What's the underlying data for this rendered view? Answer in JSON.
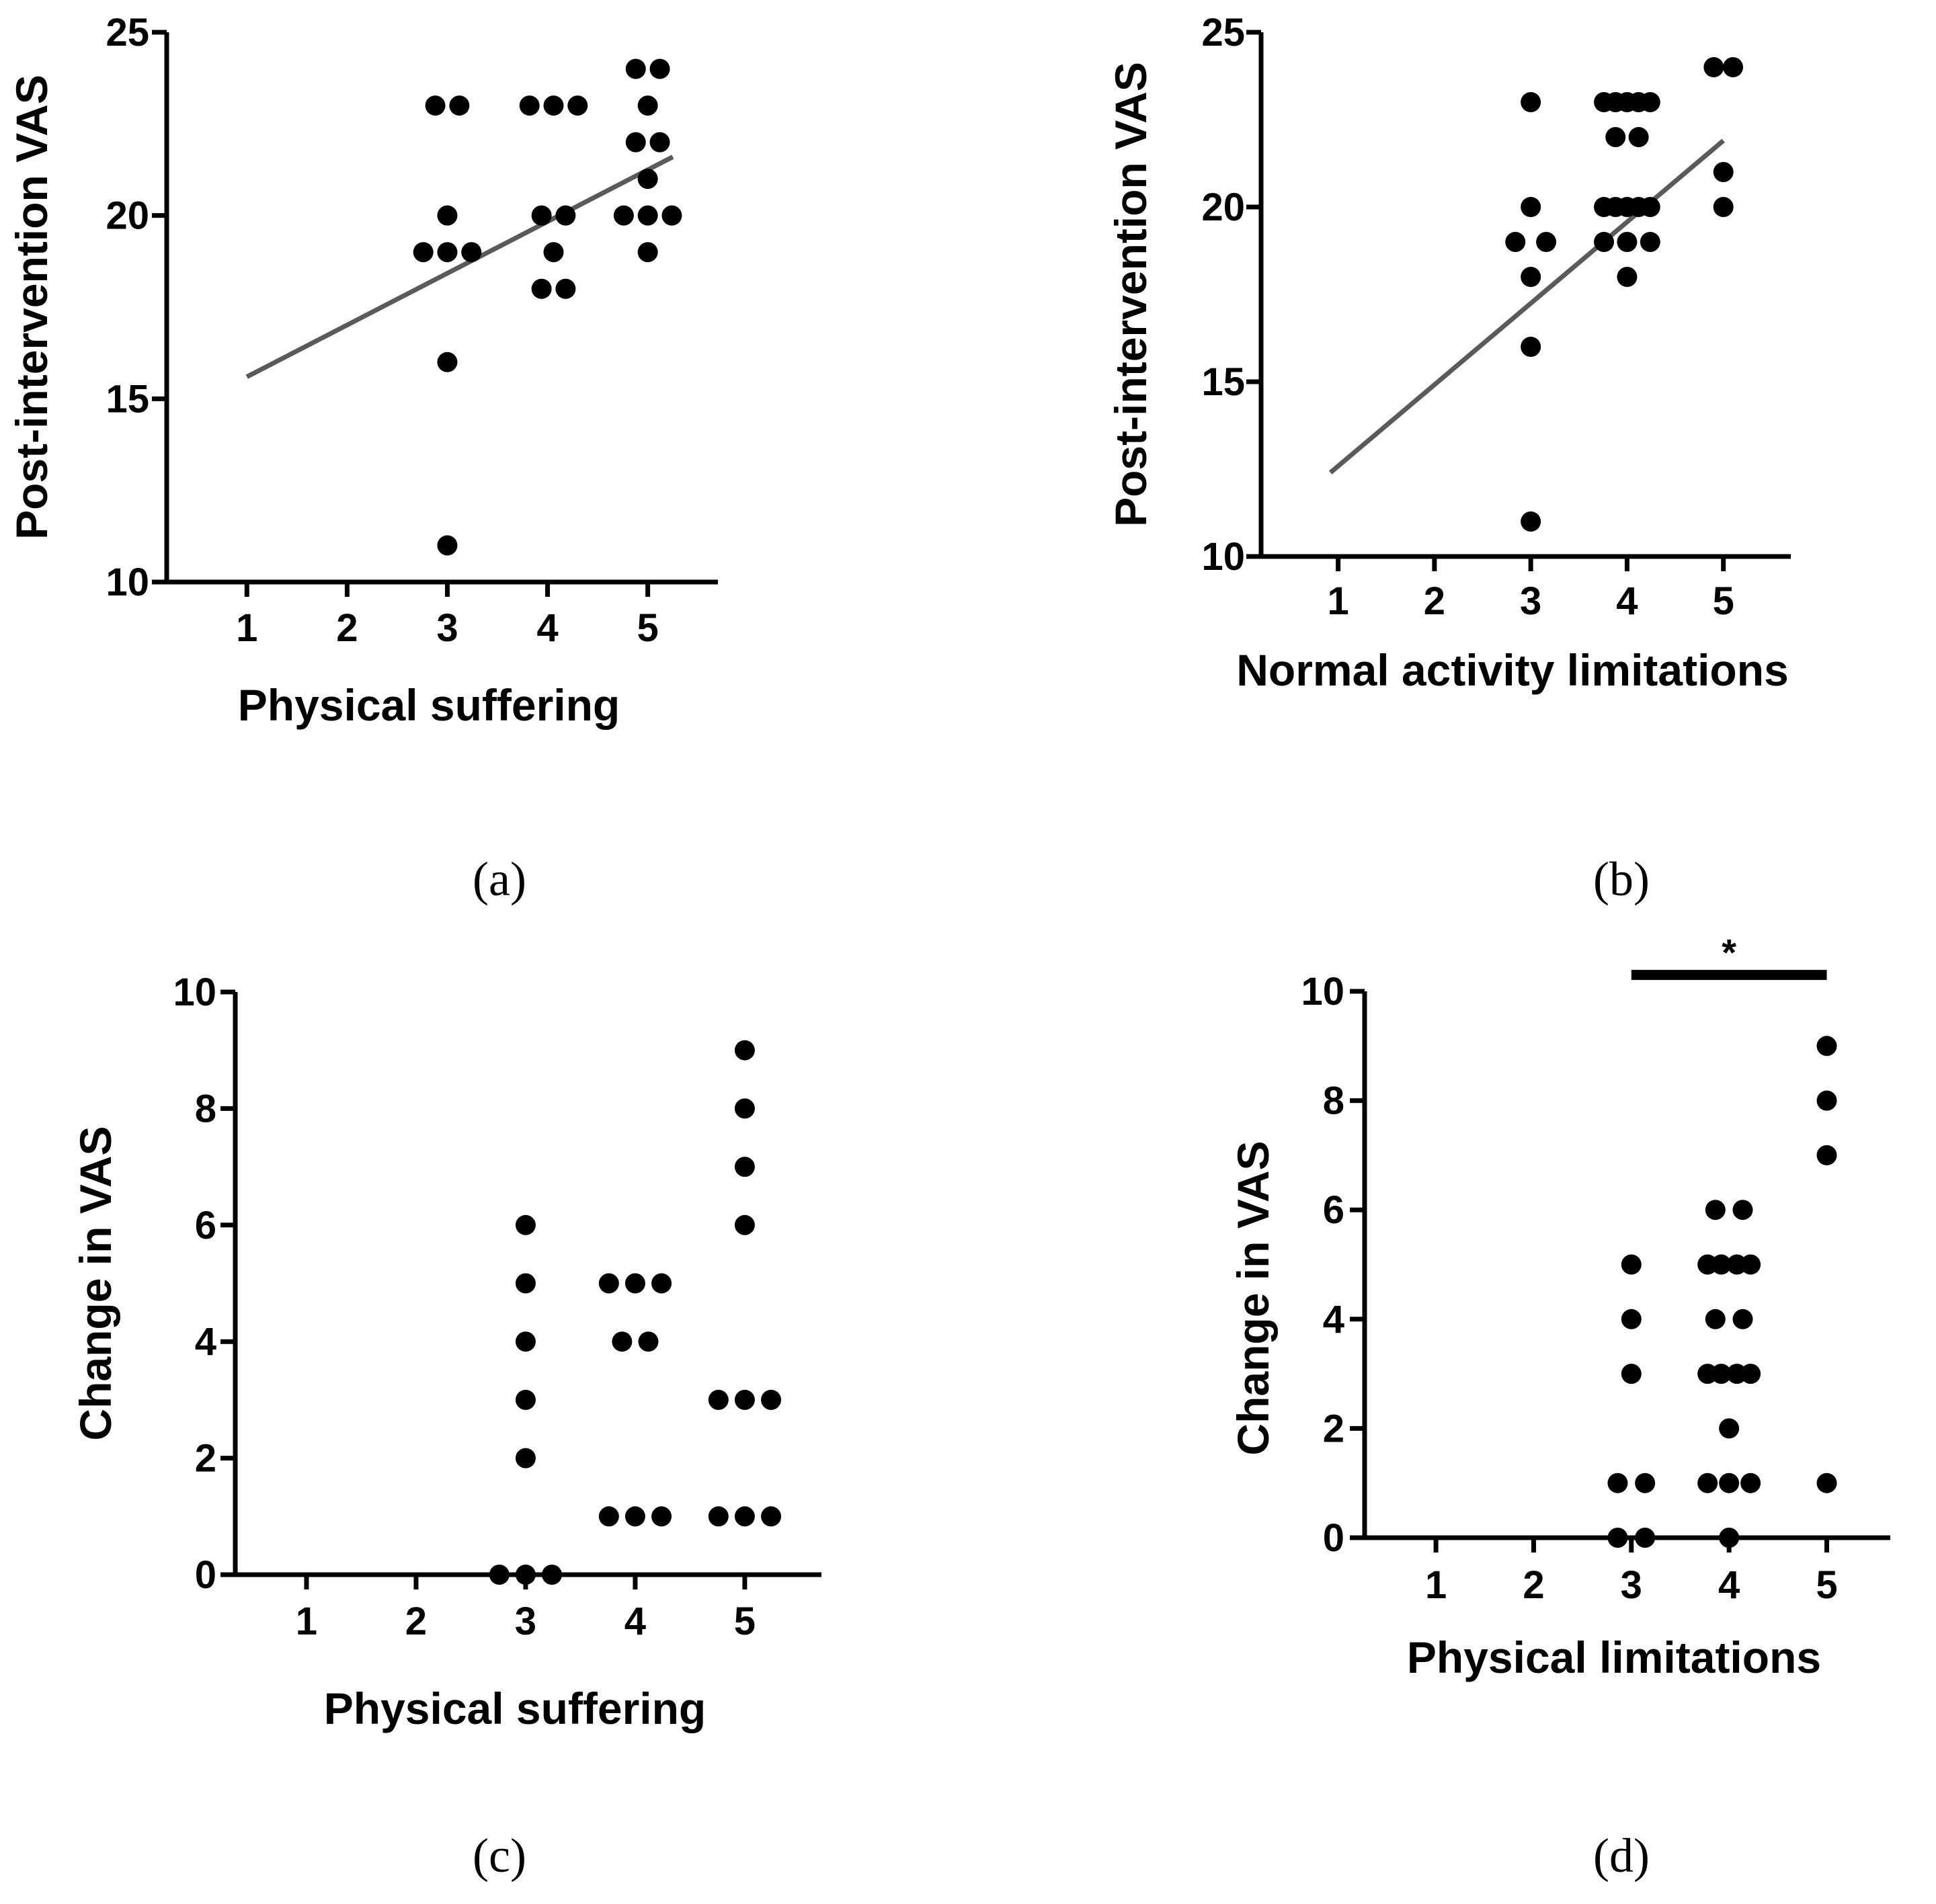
{
  "figure": {
    "panels": [
      "(a)",
      "(b)",
      "(c)",
      "(d)"
    ]
  },
  "chart_data": [
    {
      "id": "a",
      "type": "scatter",
      "panel_label": "(a)",
      "xlabel": "Physical suffering",
      "ylabel": "Post-intervention VAS",
      "xlim": [
        0.2,
        5.7
      ],
      "ylim": [
        10,
        25
      ],
      "xticks": [
        "1",
        "2",
        "3",
        "4",
        "5"
      ],
      "yticks": [
        "10",
        "15",
        "20",
        "25"
      ],
      "points": [
        {
          "x": 2.88,
          "y": 23
        },
        {
          "x": 3.12,
          "y": 23
        },
        {
          "x": 3.0,
          "y": 20
        },
        {
          "x": 2.76,
          "y": 19
        },
        {
          "x": 3.0,
          "y": 19
        },
        {
          "x": 3.24,
          "y": 19
        },
        {
          "x": 3.0,
          "y": 16
        },
        {
          "x": 3.0,
          "y": 11
        },
        {
          "x": 3.82,
          "y": 23
        },
        {
          "x": 4.06,
          "y": 23
        },
        {
          "x": 4.3,
          "y": 23
        },
        {
          "x": 3.94,
          "y": 20
        },
        {
          "x": 4.18,
          "y": 20
        },
        {
          "x": 4.06,
          "y": 19
        },
        {
          "x": 3.94,
          "y": 18
        },
        {
          "x": 4.18,
          "y": 18
        },
        {
          "x": 4.88,
          "y": 24
        },
        {
          "x": 5.12,
          "y": 24
        },
        {
          "x": 5.0,
          "y": 23
        },
        {
          "x": 4.88,
          "y": 22
        },
        {
          "x": 5.12,
          "y": 22
        },
        {
          "x": 5.0,
          "y": 21
        },
        {
          "x": 4.76,
          "y": 20
        },
        {
          "x": 5.0,
          "y": 20
        },
        {
          "x": 5.24,
          "y": 20
        },
        {
          "x": 5.0,
          "y": 19
        }
      ],
      "fit_line": {
        "x": [
          1.0,
          5.25
        ],
        "y": [
          15.6,
          21.6
        ]
      }
    },
    {
      "id": "b",
      "type": "scatter",
      "panel_label": "(b)",
      "xlabel": "Normal activity limitations",
      "ylabel": "Post-intervention VAS",
      "xlim": [
        0.2,
        5.7
      ],
      "ylim": [
        10,
        25
      ],
      "xticks": [
        "1",
        "2",
        "3",
        "4",
        "5"
      ],
      "yticks": [
        "10",
        "15",
        "20",
        "25"
      ],
      "points": [
        {
          "x": 3.0,
          "y": 23
        },
        {
          "x": 3.0,
          "y": 20
        },
        {
          "x": 2.84,
          "y": 19
        },
        {
          "x": 3.16,
          "y": 19
        },
        {
          "x": 3.0,
          "y": 18
        },
        {
          "x": 3.0,
          "y": 16
        },
        {
          "x": 3.0,
          "y": 11
        },
        {
          "x": 3.76,
          "y": 23
        },
        {
          "x": 3.88,
          "y": 23
        },
        {
          "x": 4.0,
          "y": 23
        },
        {
          "x": 4.12,
          "y": 23
        },
        {
          "x": 4.24,
          "y": 23
        },
        {
          "x": 3.88,
          "y": 22
        },
        {
          "x": 4.12,
          "y": 22
        },
        {
          "x": 3.76,
          "y": 20
        },
        {
          "x": 3.88,
          "y": 20
        },
        {
          "x": 4.0,
          "y": 20
        },
        {
          "x": 4.12,
          "y": 20
        },
        {
          "x": 4.24,
          "y": 20
        },
        {
          "x": 3.76,
          "y": 19
        },
        {
          "x": 4.0,
          "y": 19
        },
        {
          "x": 4.24,
          "y": 19
        },
        {
          "x": 4.0,
          "y": 18
        },
        {
          "x": 4.9,
          "y": 24
        },
        {
          "x": 5.1,
          "y": 24
        },
        {
          "x": 5.0,
          "y": 21
        },
        {
          "x": 5.0,
          "y": 20
        }
      ],
      "fit_line": {
        "x": [
          0.92,
          5.0
        ],
        "y": [
          12.4,
          21.9
        ]
      }
    },
    {
      "id": "c",
      "type": "scatter",
      "panel_label": "(c)",
      "xlabel": "Physical suffering",
      "ylabel": "Change in VAS",
      "xlim": [
        0.35,
        5.7
      ],
      "ylim": [
        0,
        10
      ],
      "xticks": [
        "1",
        "2",
        "3",
        "4",
        "5"
      ],
      "yticks": [
        "0",
        "2",
        "4",
        "6",
        "8",
        "10"
      ],
      "points": [
        {
          "x": 3.0,
          "y": 6
        },
        {
          "x": 3.0,
          "y": 5
        },
        {
          "x": 3.0,
          "y": 4
        },
        {
          "x": 3.0,
          "y": 3
        },
        {
          "x": 3.0,
          "y": 2
        },
        {
          "x": 2.76,
          "y": 0
        },
        {
          "x": 3.0,
          "y": 0
        },
        {
          "x": 3.24,
          "y": 0
        },
        {
          "x": 3.76,
          "y": 5
        },
        {
          "x": 4.0,
          "y": 5
        },
        {
          "x": 4.24,
          "y": 5
        },
        {
          "x": 3.88,
          "y": 4
        },
        {
          "x": 4.12,
          "y": 4
        },
        {
          "x": 3.76,
          "y": 1
        },
        {
          "x": 4.0,
          "y": 1
        },
        {
          "x": 4.24,
          "y": 1
        },
        {
          "x": 5.0,
          "y": 9
        },
        {
          "x": 5.0,
          "y": 8
        },
        {
          "x": 5.0,
          "y": 7
        },
        {
          "x": 5.0,
          "y": 6
        },
        {
          "x": 4.76,
          "y": 3
        },
        {
          "x": 5.0,
          "y": 3
        },
        {
          "x": 5.24,
          "y": 3
        },
        {
          "x": 4.76,
          "y": 1
        },
        {
          "x": 5.0,
          "y": 1
        },
        {
          "x": 5.24,
          "y": 1
        }
      ]
    },
    {
      "id": "d",
      "type": "scatter",
      "panel_label": "(d)",
      "xlabel": "Physical limitations",
      "ylabel": "Change in VAS",
      "xlim": [
        0.27,
        5.65
      ],
      "ylim": [
        0,
        10
      ],
      "xticks": [
        "1",
        "2",
        "3",
        "4",
        "5"
      ],
      "yticks": [
        "0",
        "2",
        "4",
        "6",
        "8",
        "10"
      ],
      "points": [
        {
          "x": 3.0,
          "y": 5
        },
        {
          "x": 3.0,
          "y": 4
        },
        {
          "x": 3.0,
          "y": 3
        },
        {
          "x": 2.86,
          "y": 1
        },
        {
          "x": 3.14,
          "y": 1
        },
        {
          "x": 2.86,
          "y": 0
        },
        {
          "x": 3.14,
          "y": 0
        },
        {
          "x": 3.86,
          "y": 6
        },
        {
          "x": 4.14,
          "y": 6
        },
        {
          "x": 3.78,
          "y": 5
        },
        {
          "x": 3.92,
          "y": 5
        },
        {
          "x": 4.08,
          "y": 5
        },
        {
          "x": 4.22,
          "y": 5
        },
        {
          "x": 3.86,
          "y": 4
        },
        {
          "x": 4.14,
          "y": 4
        },
        {
          "x": 3.78,
          "y": 3
        },
        {
          "x": 3.92,
          "y": 3
        },
        {
          "x": 4.08,
          "y": 3
        },
        {
          "x": 4.22,
          "y": 3
        },
        {
          "x": 4.0,
          "y": 2
        },
        {
          "x": 3.78,
          "y": 1
        },
        {
          "x": 4.0,
          "y": 1
        },
        {
          "x": 4.22,
          "y": 1
        },
        {
          "x": 4.0,
          "y": 0
        },
        {
          "x": 5.0,
          "y": 9
        },
        {
          "x": 5.0,
          "y": 8
        },
        {
          "x": 5.0,
          "y": 7
        },
        {
          "x": 5.0,
          "y": 1
        }
      ],
      "significance": {
        "from_x": 3,
        "to_x": 5,
        "y": 10.3,
        "label": "*"
      }
    }
  ]
}
